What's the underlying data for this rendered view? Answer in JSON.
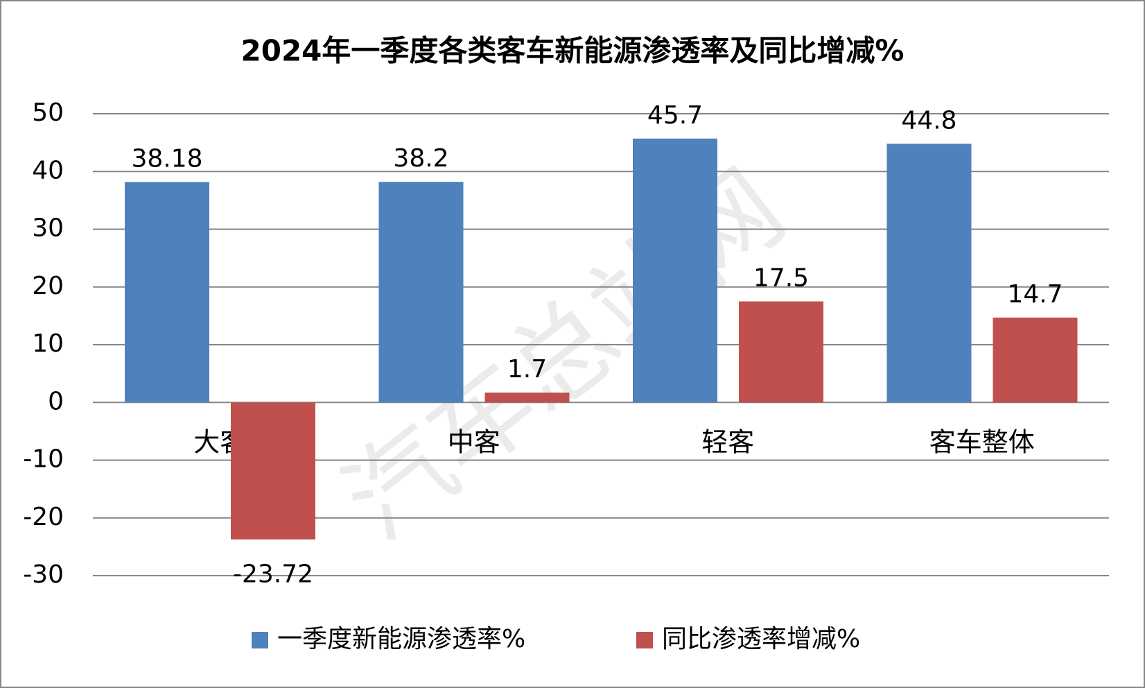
{
  "chart_data": {
    "type": "bar",
    "title": "2024年一季度各类客车新能源渗透率及同比增减%",
    "categories": [
      "大客",
      "中客",
      "轻客",
      "客车整体"
    ],
    "series": [
      {
        "name": "一季度新能源渗透率%",
        "color": "#4f81bd",
        "values": [
          38.18,
          38.2,
          45.7,
          44.8
        ]
      },
      {
        "name": "同比渗透率增减%",
        "color": "#c0504d",
        "values": [
          -23.72,
          1.7,
          17.5,
          14.7
        ]
      }
    ],
    "ylim": [
      -30,
      50
    ],
    "yticks": [
      -30,
      -20,
      -10,
      0,
      10,
      20,
      30,
      40,
      50
    ],
    "grid": true,
    "legend": "bottom",
    "watermark": "汽车总站网"
  }
}
